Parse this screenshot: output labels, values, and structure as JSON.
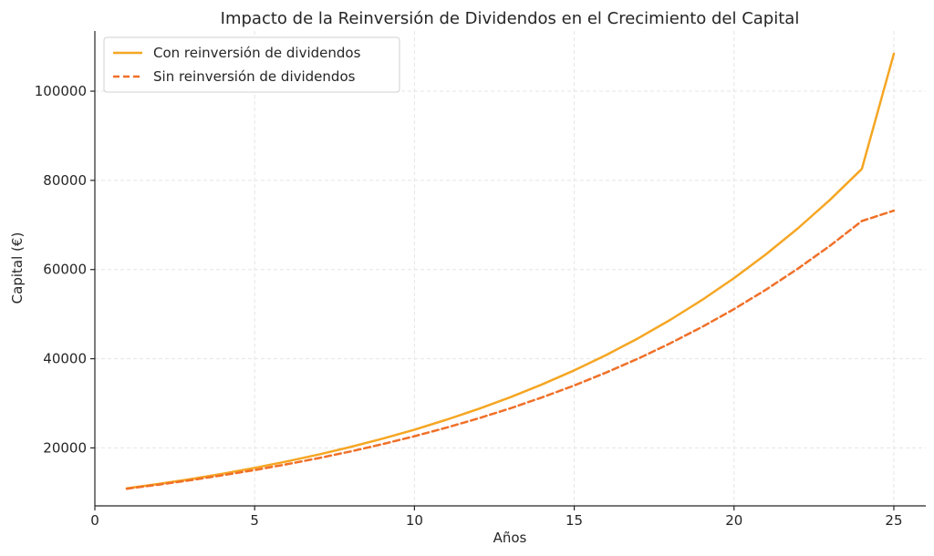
{
  "chart_data": {
    "type": "line",
    "title": "Impacto de la Reinversión de Dividendos en el Crecimiento del Capital",
    "xlabel": "Años",
    "ylabel": "Capital (€)",
    "xlim": [
      0,
      26
    ],
    "ylim": [
      7000,
      113500
    ],
    "xticks": [
      0,
      5,
      10,
      15,
      20,
      25
    ],
    "yticks": [
      20000,
      40000,
      60000,
      80000,
      100000
    ],
    "grid": true,
    "legend_position": "top-left",
    "x": [
      1,
      2,
      3,
      4,
      5,
      6,
      7,
      8,
      9,
      10,
      11,
      12,
      13,
      14,
      15,
      16,
      17,
      18,
      19,
      20,
      21,
      22,
      23,
      24,
      25
    ],
    "series": [
      {
        "name": "Con reinversión de dividendos",
        "color": "#f5a623",
        "style": "solid",
        "values": [
          10920,
          11920,
          13020,
          14220,
          15530,
          16950,
          18510,
          20210,
          22070,
          24090,
          26310,
          28730,
          31370,
          34250,
          37400,
          40840,
          44600,
          48700,
          53180,
          58080,
          63420,
          69250,
          75620,
          82580,
          108400
        ]
      },
      {
        "name": "Sin reinversión de dividendos",
        "color": "#f07028",
        "style": "dashed",
        "values": [
          10850,
          11770,
          12770,
          13860,
          15040,
          16320,
          17710,
          19210,
          20840,
          22620,
          24540,
          26620,
          28880,
          31340,
          34010,
          36900,
          40030,
          43440,
          47130,
          51140,
          55480,
          60200,
          65320,
          70870,
          73200
        ]
      }
    ]
  }
}
